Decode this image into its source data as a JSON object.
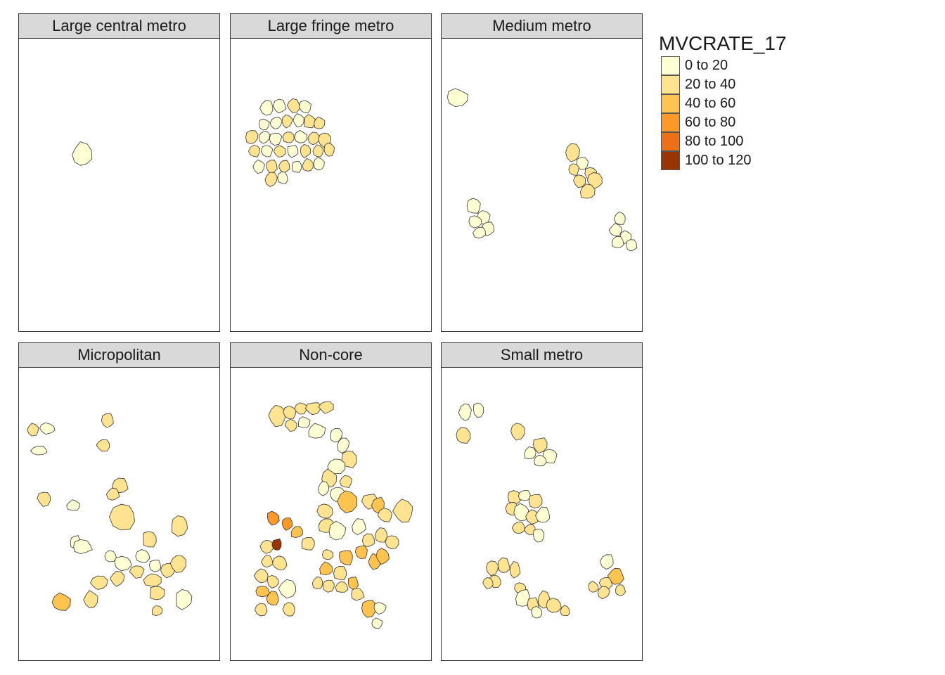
{
  "legend": {
    "title": "MVCRATE_17",
    "classes": [
      {
        "label": "0 to 20",
        "color": "#ffffd4"
      },
      {
        "label": "20 to 40",
        "color": "#fee391"
      },
      {
        "label": "40 to 60",
        "color": "#fec44f"
      },
      {
        "label": "60 to 80",
        "color": "#fe9929"
      },
      {
        "label": "80 to 100",
        "color": "#ec7014"
      },
      {
        "label": "100 to 120",
        "color": "#993404"
      }
    ]
  },
  "panels": [
    {
      "label": "Large central metro",
      "category": "Large central metro"
    },
    {
      "label": "Large fringe metro",
      "category": "Large fringe metro"
    },
    {
      "label": "Medium metro",
      "category": "Medium metro"
    },
    {
      "label": "Micropolitan",
      "category": "Micropolitan"
    },
    {
      "label": "Non-core",
      "category": "Non-core"
    },
    {
      "label": "Small metro",
      "category": "Small metro"
    }
  ]
}
